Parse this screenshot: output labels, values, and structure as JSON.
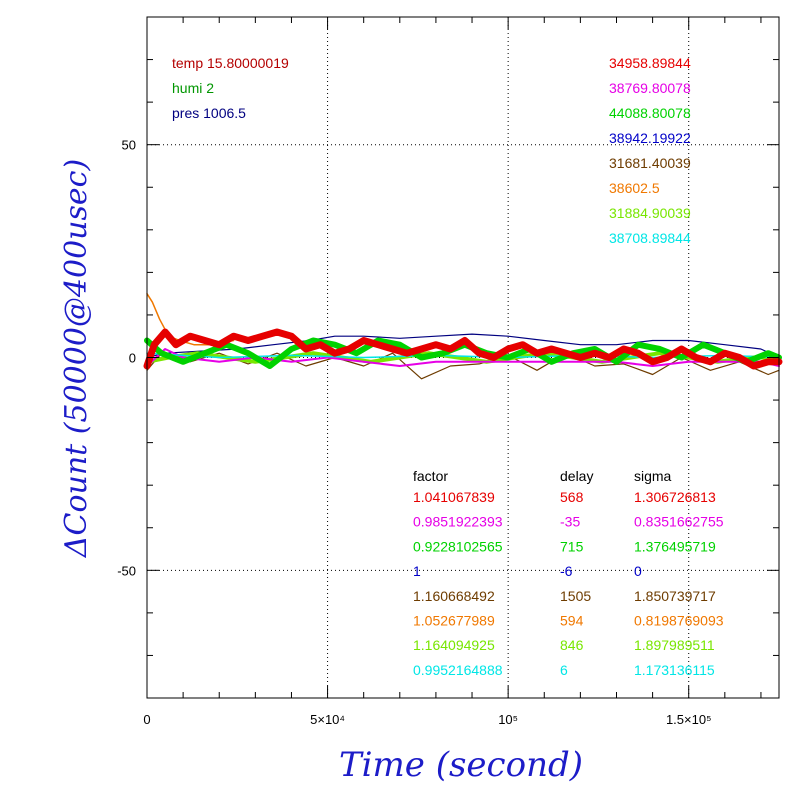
{
  "chart_data": {
    "type": "line",
    "xlabel": "Time (second)",
    "ylabel": "ΔCount (50000@400usec)",
    "xlim": [
      0,
      175000
    ],
    "ylim": [
      -80,
      80
    ],
    "x_tick_values": [
      0,
      50000,
      100000,
      150000
    ],
    "x_tick_labels": [
      "0",
      "5×10⁴",
      "10⁵",
      "1.5×10⁵"
    ],
    "y_tick_values": [
      50,
      0,
      -50
    ],
    "y_tick_labels": [
      "50",
      "0",
      "-50"
    ],
    "grid": true,
    "env": [
      {
        "text": "temp 15.80000019",
        "color": "#b40000"
      },
      {
        "text": "humi 2",
        "color": "#009600"
      },
      {
        "text": "pres 1006.5",
        "color": "#000080"
      }
    ],
    "baselines": [
      {
        "text": "34958.89844",
        "color": "#e60000"
      },
      {
        "text": "38769.80078",
        "color": "#e600e6"
      },
      {
        "text": "44088.80078",
        "color": "#00d200"
      },
      {
        "text": "38942.19922",
        "color": "#0000c8"
      },
      {
        "text": "31681.40039",
        "color": "#6e3c00"
      },
      {
        "text": "38602.5",
        "color": "#f07800"
      },
      {
        "text": "31884.90039",
        "color": "#78e600"
      },
      {
        "text": "38708.89844",
        "color": "#00e6e6"
      }
    ],
    "table_headers": {
      "factor": "factor",
      "delay": "delay",
      "sigma": "sigma"
    },
    "table": [
      {
        "factor": "1.041067839",
        "delay": "568",
        "sigma": "1.306726813",
        "color": "#e60000"
      },
      {
        "factor": "0.9851922393",
        "delay": "-35",
        "sigma": "0.8351662755",
        "color": "#e600e6"
      },
      {
        "factor": "0.9228102565",
        "delay": "715",
        "sigma": "1.376495719",
        "color": "#00d200"
      },
      {
        "factor": "1",
        "delay": "-6",
        "sigma": "0",
        "color": "#0000c8"
      },
      {
        "factor": "1.160668492",
        "delay": "1505",
        "sigma": "1.850739717",
        "color": "#6e3c00"
      },
      {
        "factor": "1.052677989",
        "delay": "594",
        "sigma": "0.8198769093",
        "color": "#f07800"
      },
      {
        "factor": "1.164094925",
        "delay": "846",
        "sigma": "1.897989511",
        "color": "#78e600"
      },
      {
        "factor": "0.9952164888",
        "delay": "6",
        "sigma": "1.173136115",
        "color": "#00e6e6"
      }
    ],
    "series": [
      {
        "color": "#000080",
        "width": 1.2,
        "x": [
          0,
          5000,
          15000,
          25000,
          35000,
          45000,
          52000,
          60000,
          70000,
          80000,
          90000,
          100000,
          110000,
          120000,
          130000,
          140000,
          150000,
          160000,
          170000,
          175000
        ],
        "y": [
          0,
          1,
          1.5,
          2,
          3,
          4,
          5,
          5,
          4.5,
          5,
          5.5,
          5,
          4,
          3,
          3,
          4,
          4,
          3,
          2,
          0
        ]
      },
      {
        "color": "#6e3c00",
        "width": 1.2,
        "x": [
          0,
          5000,
          12000,
          20000,
          28000,
          36000,
          44000,
          52000,
          60000,
          68000,
          76000,
          84000,
          92000,
          100000,
          108000,
          116000,
          124000,
          132000,
          140000,
          148000,
          156000,
          164000,
          172000,
          175000
        ],
        "y": [
          -3,
          2,
          -1,
          1,
          -1.5,
          1,
          -2,
          0,
          -2,
          1,
          -5,
          -2,
          -1.5,
          0.5,
          -3,
          1,
          -2,
          -1.5,
          -4,
          0,
          -3,
          -1,
          -4,
          -3
        ]
      },
      {
        "color": "#78e600",
        "width": 4,
        "x": [
          0,
          6000,
          14000,
          22000,
          30000,
          38000,
          46000,
          54000,
          62000,
          70000,
          78000,
          86000,
          94000,
          102000,
          110000,
          118000,
          126000,
          134000,
          142000,
          150000,
          158000,
          166000,
          175000
        ],
        "y": [
          -1,
          0,
          1,
          0,
          -1,
          0,
          1,
          0,
          -1,
          0,
          1,
          0,
          -1,
          0,
          1,
          0,
          -1,
          0,
          1,
          0,
          -1,
          0,
          0
        ]
      },
      {
        "color": "#e600e6",
        "width": 2,
        "x": [
          0,
          5000,
          10000,
          20000,
          30000,
          40000,
          50000,
          60000,
          70000,
          80000,
          90000,
          100000,
          110000,
          120000,
          130000,
          140000,
          150000,
          160000,
          170000,
          175000
        ],
        "y": [
          -2,
          2,
          0,
          -1,
          0,
          -1,
          0,
          -1,
          -2,
          -1,
          -1,
          -1,
          -1,
          -1,
          -1,
          -2,
          -1,
          -1,
          -1,
          -2
        ]
      },
      {
        "color": "#00e6e6",
        "width": 1.5,
        "x": [
          0,
          10000,
          20000,
          40000,
          60000,
          80000,
          100000,
          120000,
          140000,
          160000,
          175000
        ],
        "y": [
          1,
          0.5,
          0,
          0.5,
          0,
          0.5,
          0,
          0.5,
          0,
          0.5,
          0
        ]
      },
      {
        "color": "#00d200",
        "width": 6,
        "x": [
          0,
          4000,
          10000,
          16000,
          22000,
          28000,
          34000,
          40000,
          46000,
          52000,
          58000,
          64000,
          70000,
          76000,
          82000,
          88000,
          94000,
          100000,
          106000,
          112000,
          118000,
          124000,
          130000,
          136000,
          142000,
          148000,
          154000,
          160000,
          166000,
          172000,
          175000
        ],
        "y": [
          4,
          1,
          -1,
          1,
          3,
          1,
          -2,
          2,
          4,
          3,
          1,
          4,
          3,
          0,
          1,
          3,
          1,
          0,
          2,
          -1,
          1,
          2,
          -1,
          3,
          2,
          0,
          3,
          1,
          -1,
          1,
          0
        ]
      },
      {
        "color": "#f07800",
        "width": 1.5,
        "x": [
          0,
          1500,
          3500,
          6000,
          9000,
          13000,
          18000,
          24000
        ],
        "y": [
          15,
          13,
          9,
          5,
          4,
          3,
          3,
          4
        ]
      },
      {
        "color": "#e60000",
        "width": 7,
        "x": [
          0,
          2000,
          5000,
          8000,
          12000,
          16000,
          20000,
          24000,
          28000,
          32000,
          36000,
          40000,
          44000,
          48000,
          52000,
          56000,
          60000,
          64000,
          68000,
          72000,
          76000,
          80000,
          84000,
          88000,
          92000,
          96000,
          100000,
          104000,
          108000,
          112000,
          116000,
          120000,
          124000,
          128000,
          132000,
          136000,
          140000,
          144000,
          148000,
          152000,
          156000,
          160000,
          164000,
          168000,
          172000,
          175000
        ],
        "y": [
          -2,
          3,
          6,
          3,
          5,
          4,
          3,
          5,
          4,
          5,
          6,
          5,
          2,
          3,
          1,
          2,
          4,
          3,
          2,
          1,
          2,
          3,
          2,
          4,
          1,
          0,
          2,
          3,
          1,
          2,
          1,
          0,
          1,
          0,
          2,
          1,
          -1,
          0,
          2,
          0,
          -1,
          1,
          0,
          -2,
          -1,
          -1
        ]
      }
    ]
  }
}
